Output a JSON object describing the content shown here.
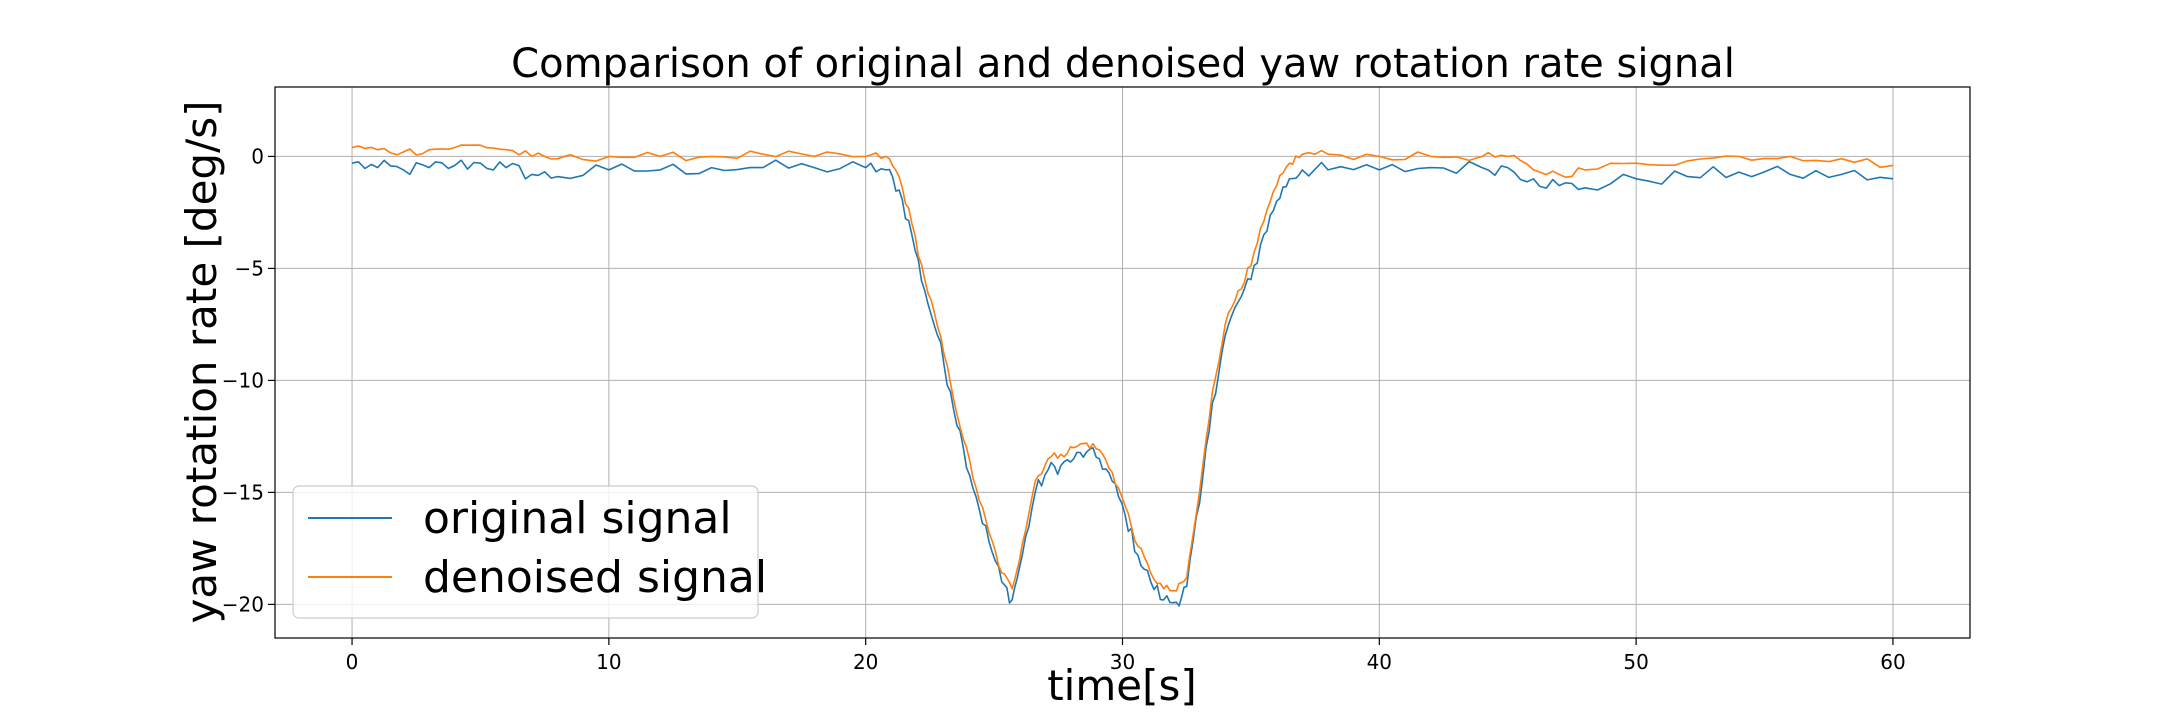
{
  "chart_data": {
    "type": "line",
    "title": "Comparison of original and denoised yaw rotation rate signal",
    "xlabel": "time[s]",
    "ylabel": "yaw rotation rate [deg/s]",
    "xlim": [
      -3,
      63
    ],
    "ylim": [
      -21.5,
      3.1
    ],
    "xticks": [
      0,
      10,
      20,
      30,
      40,
      50,
      60
    ],
    "yticks": [
      0,
      -5,
      -10,
      -15,
      -20
    ],
    "grid": true,
    "legend_position": "lower-left",
    "series": [
      {
        "name": "original signal",
        "color": "#1f77b4",
        "noise": 0.35,
        "x": [
          0,
          1,
          2,
          3,
          4,
          5,
          6,
          7,
          8,
          10,
          12,
          14,
          16,
          18,
          20,
          20.8,
          21.3,
          21.8,
          22.3,
          22.8,
          23.3,
          23.8,
          24.3,
          24.8,
          25.3,
          25.7,
          26.1,
          26.6,
          27.1,
          27.6,
          28.1,
          28.6,
          29.1,
          29.6,
          30.1,
          30.6,
          31.1,
          31.6,
          32.1,
          32.5,
          33.0,
          33.5,
          34.0,
          34.5,
          35.0,
          35.5,
          36.0,
          36.5,
          37.0,
          38,
          40,
          42,
          44,
          45,
          46,
          47,
          48,
          50,
          52,
          54,
          56,
          58,
          60
        ],
        "y": [
          -0.3,
          -0.5,
          -0.6,
          -0.5,
          -0.4,
          -0.3,
          -0.5,
          -0.8,
          -0.9,
          -0.6,
          -0.6,
          -0.5,
          -0.5,
          -0.5,
          -0.5,
          -0.6,
          -1.5,
          -3.5,
          -6.0,
          -8.0,
          -10.5,
          -13.0,
          -15.2,
          -17.2,
          -19.0,
          -19.8,
          -17.8,
          -15.0,
          -14.0,
          -13.8,
          -13.5,
          -13.2,
          -13.5,
          -14.5,
          -16.0,
          -17.8,
          -19.0,
          -19.8,
          -19.9,
          -19.2,
          -15.5,
          -11.0,
          -8.0,
          -6.5,
          -5.5,
          -3.5,
          -2.0,
          -1.0,
          -0.6,
          -0.6,
          -0.6,
          -0.5,
          -0.5,
          -0.5,
          -1.0,
          -1.3,
          -1.4,
          -1.0,
          -0.9,
          -0.7,
          -0.8,
          -0.8,
          -1.0
        ]
      },
      {
        "name": "denoised signal",
        "color": "#ff7f0e",
        "noise": 0.2,
        "x": [
          0,
          1,
          2,
          3,
          4,
          5,
          6,
          7,
          8,
          10,
          12,
          14,
          16,
          18,
          20,
          20.8,
          21.3,
          21.8,
          22.3,
          22.8,
          23.3,
          23.8,
          24.3,
          24.8,
          25.3,
          25.7,
          26.1,
          26.6,
          27.1,
          27.6,
          28.1,
          28.6,
          29.1,
          29.6,
          30.1,
          30.6,
          31.1,
          31.6,
          32.1,
          32.5,
          33.0,
          33.5,
          34.0,
          34.5,
          35.0,
          35.5,
          36.0,
          36.5,
          37.0,
          38,
          40,
          42,
          44,
          45,
          46,
          47,
          48,
          50,
          52,
          54,
          56,
          58,
          60
        ],
        "y": [
          0.4,
          0.3,
          0.2,
          0.3,
          0.4,
          0.5,
          0.3,
          0.0,
          -0.1,
          0.0,
          0.0,
          0.0,
          0.1,
          0.0,
          0.0,
          0.0,
          -0.9,
          -3.0,
          -5.5,
          -7.6,
          -10.1,
          -12.6,
          -14.8,
          -16.8,
          -18.6,
          -19.3,
          -17.3,
          -14.5,
          -13.5,
          -13.3,
          -13.0,
          -12.8,
          -13.1,
          -14.1,
          -15.6,
          -17.4,
          -18.6,
          -19.3,
          -19.4,
          -18.8,
          -15.0,
          -10.5,
          -7.5,
          -6.0,
          -4.9,
          -2.9,
          -1.3,
          -0.3,
          0.1,
          0.1,
          0.0,
          0.0,
          0.0,
          0.0,
          -0.6,
          -0.8,
          -0.6,
          -0.3,
          -0.2,
          0.0,
          0.0,
          -0.1,
          -0.4
        ]
      }
    ]
  }
}
